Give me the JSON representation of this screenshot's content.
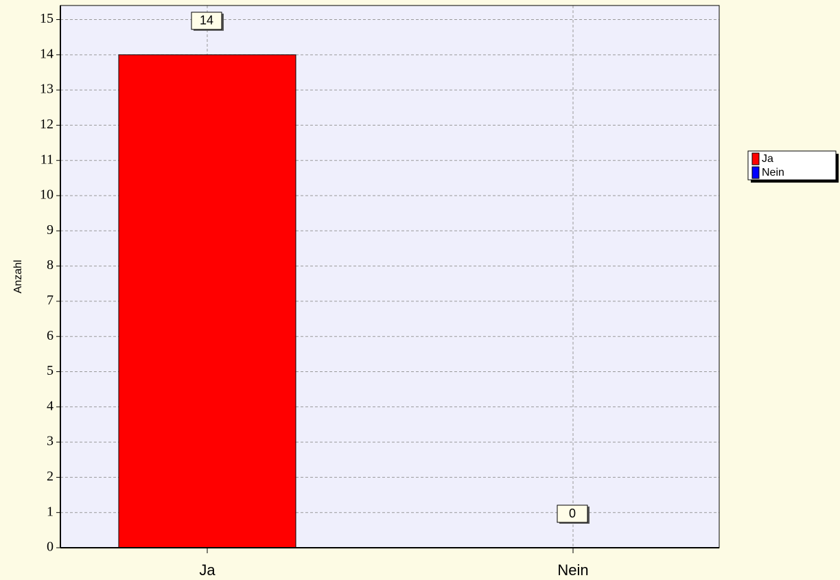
{
  "chart_data": {
    "type": "bar",
    "y_label": "Anzahl",
    "categories": [
      "Ja",
      "Nein"
    ],
    "values": [
      14,
      0
    ],
    "colors": [
      "#ff0000",
      "#0000ff"
    ],
    "ylim": [
      0,
      15.4
    ],
    "yticks": [
      0,
      1,
      2,
      3,
      4,
      5,
      6,
      7,
      8,
      9,
      10,
      11,
      12,
      13,
      14,
      15
    ],
    "grid": true,
    "legend": "right"
  }
}
